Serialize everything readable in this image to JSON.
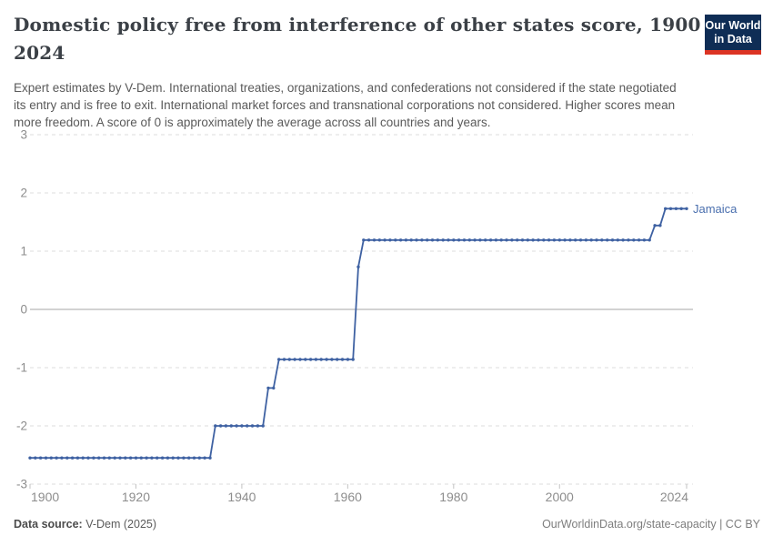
{
  "header": {
    "title": "Domestic policy free from interference of other states score, 1900 to 2024",
    "title_line1": "Domestic policy free from interference of other states score, 1900 to",
    "title_line2": "2024",
    "subtitle_lines": [
      "Expert estimates by V-Dem. International treaties, organizations, and confederations not considered if the state negotiated",
      "its entry and is free to exit. International market forces and transnational corporations not considered. Higher scores mean",
      "more freedom. A score of 0 is approximately the average across all countries and years."
    ],
    "logo": {
      "line1": "Our World",
      "line2": "in Data",
      "bg_color": "#0f2d55",
      "accent_color": "#dc3424"
    }
  },
  "chart_data": {
    "type": "line",
    "title": "Domestic policy free from interference of other states score, 1900 to 2024",
    "xlabel": "",
    "ylabel": "",
    "x": {
      "lim": [
        1900,
        2024
      ],
      "ticks": [
        1900,
        1920,
        1940,
        1960,
        1980,
        2000,
        2024
      ]
    },
    "y": {
      "lim": [
        -3,
        3
      ],
      "ticks": [
        3,
        2,
        1,
        0,
        -1,
        -2,
        -3
      ]
    },
    "grid": "horizontal dashed gridlines, solid line at zero",
    "legend": "entity label at end of line",
    "series": [
      {
        "name": "Jamaica",
        "color": "#3e61a2",
        "label_color": "#4a6fae",
        "marker": "point-per-year",
        "segments": [
          {
            "from": 1900,
            "to": 1934,
            "value": -2.55
          },
          {
            "from": 1935,
            "to": 1944,
            "value": -2.0
          },
          {
            "from": 1945,
            "to": 1946,
            "value": -1.35
          },
          {
            "from": 1947,
            "to": 1961,
            "value": -0.86
          },
          {
            "from": 1962,
            "to": 1962,
            "value": 0.73
          },
          {
            "from": 1963,
            "to": 2017,
            "value": 1.19
          },
          {
            "from": 2018,
            "to": 2019,
            "value": 1.44
          },
          {
            "from": 2020,
            "to": 2024,
            "value": 1.73
          }
        ]
      }
    ]
  },
  "footer": {
    "data_source_label": "Data source:",
    "data_source_value": "V-Dem (2025)",
    "right_text": "OurWorldinData.org/state-capacity | CC BY"
  }
}
